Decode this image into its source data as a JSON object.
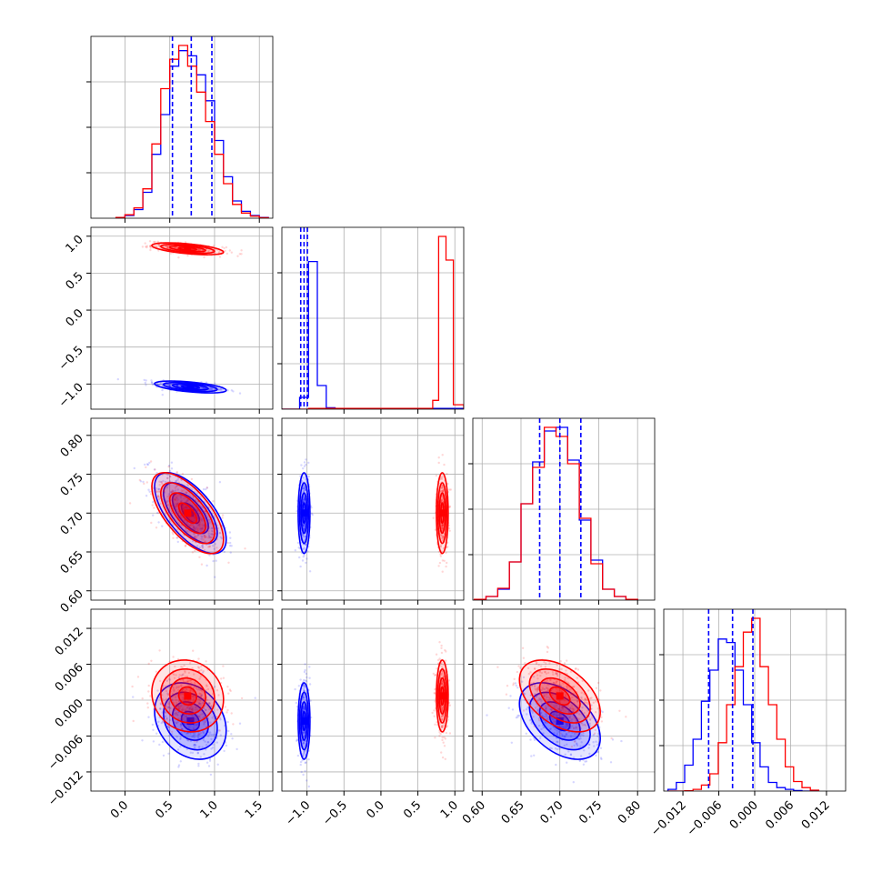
{
  "colors": {
    "blue": "#0000ff",
    "red": "#ff0000",
    "grid": "#b0b0b0",
    "axis": "#000000"
  },
  "chart_data": {
    "type": "corner",
    "grid": true,
    "series": [
      {
        "color": "#0000ff",
        "means": [
          0.73,
          -1.04,
          0.7,
          -0.0035
        ],
        "sds": [
          0.2,
          0.04,
          0.026,
          0.0032
        ],
        "corr": [
          [
            0,
            1,
            -0.55
          ],
          [
            0,
            2,
            -0.65
          ],
          [
            0,
            3,
            -0.25
          ],
          [
            2,
            3,
            -0.45
          ]
        ]
      },
      {
        "color": "#ff0000",
        "means": [
          0.7,
          0.83,
          0.7,
          0.0007
        ],
        "sds": [
          0.2,
          0.04,
          0.026,
          0.003
        ],
        "corr": [
          [
            0,
            1,
            -0.55
          ],
          [
            0,
            2,
            -0.65
          ],
          [
            0,
            3,
            -0.1
          ],
          [
            2,
            3,
            -0.45
          ]
        ]
      }
    ],
    "axes": [
      {
        "range": [
          -0.38,
          1.65
        ],
        "ticks": [
          0.0,
          0.5,
          1.0,
          1.5
        ],
        "tick_labels": [
          "0.0",
          "0.5",
          "1.0",
          "1.5"
        ]
      },
      {
        "range": [
          -1.34,
          1.12
        ],
        "ticks": [
          -1.0,
          -0.5,
          0.0,
          0.5,
          1.0
        ],
        "tick_labels": [
          "−1.0",
          "−0.5",
          "0.0",
          "0.5",
          "1.0"
        ]
      },
      {
        "range": [
          0.588,
          0.822
        ],
        "ticks": [
          0.6,
          0.65,
          0.7,
          0.75,
          0.8
        ],
        "tick_labels": [
          "0.60",
          "0.65",
          "0.70",
          "0.75",
          "0.80"
        ]
      },
      {
        "range": [
          -0.0152,
          0.0152
        ],
        "ticks": [
          -0.012,
          -0.006,
          0.0,
          0.006,
          0.012
        ],
        "tick_labels": [
          "−0.012",
          "−0.006",
          "0.000",
          "0.006",
          "0.012"
        ]
      }
    ],
    "diagonal": [
      {
        "edges": [
          -0.1,
          0.0,
          0.1,
          0.2,
          0.3,
          0.4,
          0.5,
          0.6,
          0.7,
          0.8,
          0.9,
          1.0,
          1.1,
          1.2,
          1.3,
          1.4,
          1.5,
          1.6
        ],
        "blue": [
          0.003,
          0.016,
          0.05,
          0.15,
          0.37,
          0.6,
          0.88,
          0.97,
          0.94,
          0.83,
          0.68,
          0.45,
          0.24,
          0.1,
          0.04,
          0.016,
          0.004
        ],
        "red": [
          0.004,
          0.02,
          0.06,
          0.17,
          0.43,
          0.75,
          0.92,
          1.0,
          0.88,
          0.73,
          0.56,
          0.37,
          0.2,
          0.08,
          0.03,
          0.012,
          0.003
        ],
        "quantiles": [
          0.53,
          0.74,
          0.97
        ]
      },
      {
        "edges": [
          -1.34,
          -1.22,
          -1.1,
          -0.98,
          -0.86,
          -0.74,
          -0.62,
          -0.5,
          -0.38,
          -0.26,
          -0.14,
          -0.02,
          0.1,
          0.22,
          0.34,
          0.46,
          0.58,
          0.7,
          0.78,
          0.88,
          0.98,
          1.12
        ],
        "blue": [
          0.0,
          0.0,
          0.08,
          1.0,
          0.16,
          0.01,
          0.005,
          0.005,
          0.005,
          0.005,
          0.005,
          0.005,
          0.005,
          0.005,
          0.005,
          0.005,
          0.005,
          0.005,
          0.005,
          0.005,
          0.005
        ],
        "red": [
          0.0,
          0.0,
          0.0,
          0.005,
          0.005,
          0.005,
          0.005,
          0.005,
          0.005,
          0.005,
          0.005,
          0.005,
          0.005,
          0.005,
          0.005,
          0.005,
          0.005,
          0.06,
          1.17,
          1.01,
          0.03
        ],
        "quantiles": [
          -1.085,
          -1.04,
          -0.995
        ]
      },
      {
        "edges": [
          0.59,
          0.605,
          0.62,
          0.635,
          0.65,
          0.665,
          0.68,
          0.695,
          0.71,
          0.725,
          0.74,
          0.755,
          0.77,
          0.785,
          0.8
        ],
        "blue": [
          0.003,
          0.02,
          0.06,
          0.21,
          0.53,
          0.76,
          0.93,
          0.95,
          0.77,
          0.44,
          0.22,
          0.06,
          0.02,
          0.004
        ],
        "red": [
          0.004,
          0.02,
          0.065,
          0.21,
          0.53,
          0.73,
          0.95,
          0.9,
          0.75,
          0.45,
          0.2,
          0.06,
          0.02,
          0.004
        ],
        "quantiles": [
          0.674,
          0.7,
          0.727
        ]
      },
      {
        "edges": [
          -0.0145,
          -0.0131,
          -0.0117,
          -0.0103,
          -0.0089,
          -0.0075,
          -0.0061,
          -0.0047,
          -0.0033,
          -0.0019,
          -0.0005,
          0.0009,
          0.0023,
          0.0037,
          0.0051,
          0.0065,
          0.0079,
          0.0093,
          0.0107
        ],
        "blue": [
          0.01,
          0.05,
          0.15,
          0.3,
          0.52,
          0.7,
          0.88,
          0.86,
          0.7,
          0.5,
          0.28,
          0.14,
          0.05,
          0.02,
          0.01,
          0.003,
          0.0,
          0.0
        ],
        "red": [
          0.0,
          0.0,
          0.002,
          0.01,
          0.035,
          0.1,
          0.28,
          0.5,
          0.72,
          0.92,
          1.0,
          0.72,
          0.5,
          0.3,
          0.14,
          0.055,
          0.02,
          0.005
        ],
        "quantiles": [
          -0.0077,
          -0.0037,
          -0.0003
        ]
      }
    ]
  }
}
